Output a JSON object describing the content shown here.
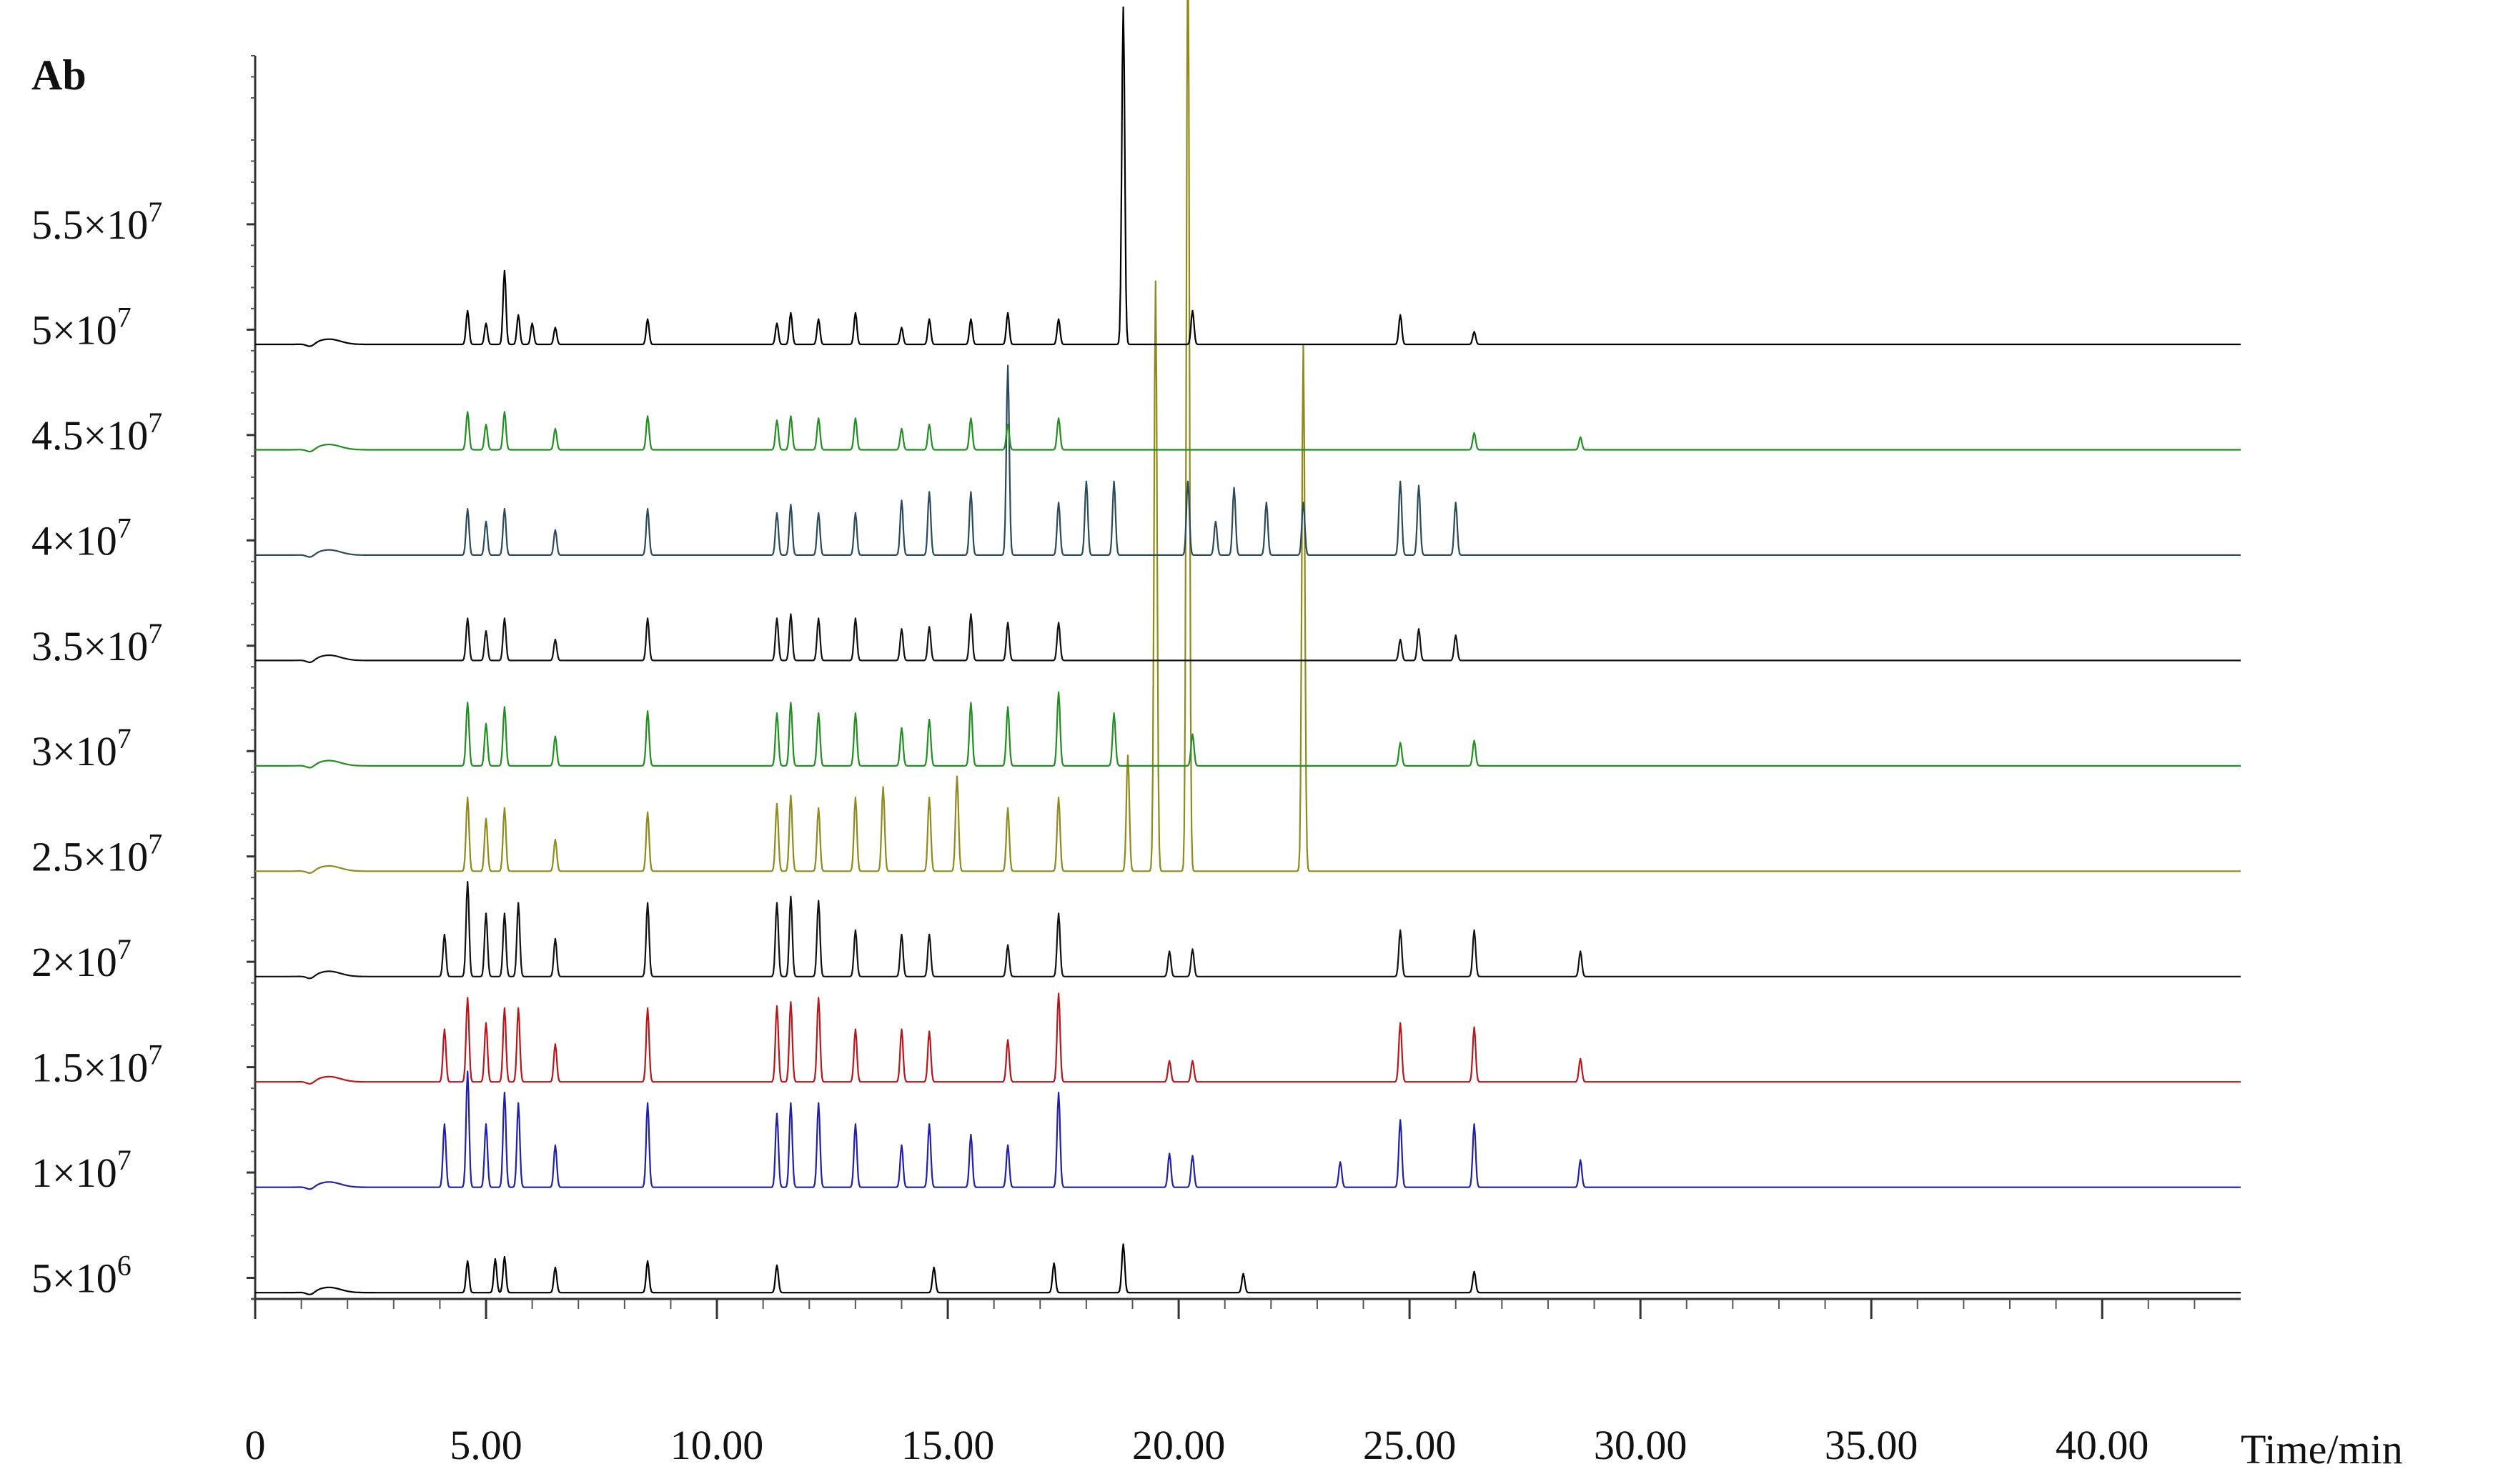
{
  "chart_data": {
    "type": "line",
    "title": "",
    "ylabel": "Ab",
    "xlabel": "Time/min",
    "x_ticks": [
      "0",
      "5.00",
      "10.00",
      "15.00",
      "20.00",
      "25.00",
      "30.00",
      "35.00",
      "40.00"
    ],
    "x_tick_values": [
      0,
      5,
      10,
      15,
      20,
      25,
      30,
      35,
      40
    ],
    "y_ticks": [
      {
        "value": 5000000,
        "mantissa": "5",
        "exponent": "6"
      },
      {
        "value": 10000000,
        "mantissa": "1",
        "exponent": "7"
      },
      {
        "value": 15000000,
        "mantissa": "1.5",
        "exponent": "7"
      },
      {
        "value": 20000000,
        "mantissa": "2",
        "exponent": "7"
      },
      {
        "value": 25000000,
        "mantissa": "2.5",
        "exponent": "7"
      },
      {
        "value": 30000000,
        "mantissa": "3",
        "exponent": "7"
      },
      {
        "value": 35000000,
        "mantissa": "3.5",
        "exponent": "7"
      },
      {
        "value": 40000000,
        "mantissa": "4",
        "exponent": "7"
      },
      {
        "value": 45000000,
        "mantissa": "4.5",
        "exponent": "7"
      },
      {
        "value": 50000000,
        "mantissa": "5",
        "exponent": "7"
      },
      {
        "value": 55000000,
        "mantissa": "5.5",
        "exponent": "7"
      }
    ],
    "times_symbol": "×",
    "xlim": [
      0,
      43
    ],
    "ylim": [
      4000000,
      63000000
    ],
    "grid": false,
    "legend": "none",
    "series": [
      {
        "color": "#000000",
        "baseline": 4300000,
        "peaks": [
          [
            4.6,
            1.5
          ],
          [
            5.2,
            1.6
          ],
          [
            5.4,
            1.7
          ],
          [
            6.5,
            1.2
          ],
          [
            8.5,
            1.5
          ],
          [
            11.3,
            1.3
          ],
          [
            14.7,
            1.2
          ],
          [
            17.3,
            1.4
          ],
          [
            18.8,
            2.3
          ],
          [
            21.4,
            0.9
          ],
          [
            26.4,
            1.0
          ]
        ]
      },
      {
        "color": "#1f1faa",
        "baseline": 9300000,
        "peaks": [
          [
            4.1,
            3.0
          ],
          [
            4.6,
            5.5
          ],
          [
            5.0,
            3.0
          ],
          [
            5.4,
            4.5
          ],
          [
            5.7,
            4.0
          ],
          [
            6.5,
            2.0
          ],
          [
            8.5,
            4.0
          ],
          [
            11.3,
            3.5
          ],
          [
            11.6,
            4.0
          ],
          [
            12.2,
            4.0
          ],
          [
            13.0,
            3.0
          ],
          [
            14.0,
            2.0
          ],
          [
            14.6,
            3.0
          ],
          [
            15.5,
            2.5
          ],
          [
            16.3,
            2.0
          ],
          [
            17.4,
            4.5
          ],
          [
            19.8,
            1.6
          ],
          [
            20.3,
            1.5
          ],
          [
            23.5,
            1.2
          ],
          [
            24.8,
            3.2
          ],
          [
            26.4,
            3.0
          ],
          [
            28.7,
            1.3
          ]
        ]
      },
      {
        "color": "#b8161b",
        "baseline": 14300000,
        "peaks": [
          [
            4.1,
            2.5
          ],
          [
            4.6,
            4.0
          ],
          [
            5.0,
            2.8
          ],
          [
            5.4,
            3.5
          ],
          [
            5.7,
            3.5
          ],
          [
            6.5,
            1.8
          ],
          [
            8.5,
            3.5
          ],
          [
            11.3,
            3.6
          ],
          [
            11.6,
            3.8
          ],
          [
            12.2,
            4.0
          ],
          [
            13.0,
            2.5
          ],
          [
            14.0,
            2.5
          ],
          [
            14.6,
            2.4
          ],
          [
            16.3,
            2.0
          ],
          [
            17.4,
            4.2
          ],
          [
            19.8,
            1.0
          ],
          [
            20.3,
            1.0
          ],
          [
            24.8,
            2.8
          ],
          [
            26.4,
            2.6
          ],
          [
            28.7,
            1.1
          ]
        ]
      },
      {
        "color": "#111111",
        "baseline": 19300000,
        "peaks": [
          [
            4.1,
            2.0
          ],
          [
            4.6,
            4.5
          ],
          [
            5.0,
            3.0
          ],
          [
            5.4,
            3.0
          ],
          [
            5.7,
            3.5
          ],
          [
            6.5,
            1.8
          ],
          [
            8.5,
            3.5
          ],
          [
            11.3,
            3.5
          ],
          [
            11.6,
            3.8
          ],
          [
            12.2,
            3.6
          ],
          [
            13.0,
            2.2
          ],
          [
            14.0,
            2.0
          ],
          [
            14.6,
            2.0
          ],
          [
            16.3,
            1.5
          ],
          [
            17.4,
            3.0
          ],
          [
            19.8,
            1.2
          ],
          [
            20.3,
            1.3
          ],
          [
            24.8,
            2.2
          ],
          [
            26.4,
            2.2
          ],
          [
            28.7,
            1.2
          ]
        ]
      },
      {
        "color": "#8f8a1a",
        "baseline": 24300000,
        "peaks": [
          [
            4.6,
            3.5
          ],
          [
            5.0,
            2.5
          ],
          [
            5.4,
            3.0
          ],
          [
            6.5,
            1.5
          ],
          [
            8.5,
            2.8
          ],
          [
            11.3,
            3.2
          ],
          [
            11.6,
            3.6
          ],
          [
            12.2,
            3.0
          ],
          [
            13.0,
            3.5
          ],
          [
            13.6,
            4.0
          ],
          [
            14.6,
            3.5
          ],
          [
            15.2,
            4.5
          ],
          [
            16.3,
            3.0
          ],
          [
            17.4,
            3.5
          ],
          [
            18.9,
            5.5
          ],
          [
            19.5,
            28.0
          ],
          [
            20.2,
            45.0
          ],
          [
            22.7,
            25.0
          ]
        ]
      },
      {
        "color": "#1f8f1f",
        "baseline": 29300000,
        "peaks": [
          [
            4.6,
            3.0
          ],
          [
            5.0,
            2.0
          ],
          [
            5.4,
            2.8
          ],
          [
            6.5,
            1.4
          ],
          [
            8.5,
            2.6
          ],
          [
            11.3,
            2.5
          ],
          [
            11.6,
            3.0
          ],
          [
            12.2,
            2.5
          ],
          [
            13.0,
            2.5
          ],
          [
            14.0,
            1.8
          ],
          [
            14.6,
            2.2
          ],
          [
            15.5,
            3.0
          ],
          [
            16.3,
            2.8
          ],
          [
            17.4,
            3.5
          ],
          [
            18.6,
            2.5
          ],
          [
            20.3,
            1.5
          ],
          [
            24.8,
            1.1
          ],
          [
            26.4,
            1.2
          ]
        ]
      },
      {
        "color": "#111111",
        "baseline": 34300000,
        "peaks": [
          [
            4.6,
            2.0
          ],
          [
            5.0,
            1.4
          ],
          [
            5.4,
            2.0
          ],
          [
            6.5,
            1.0
          ],
          [
            8.5,
            2.0
          ],
          [
            11.3,
            2.0
          ],
          [
            11.6,
            2.2
          ],
          [
            12.2,
            2.0
          ],
          [
            13.0,
            2.0
          ],
          [
            14.0,
            1.5
          ],
          [
            14.6,
            1.6
          ],
          [
            15.5,
            2.2
          ],
          [
            16.3,
            1.8
          ],
          [
            17.4,
            1.8
          ],
          [
            24.8,
            1.0
          ],
          [
            25.2,
            1.5
          ],
          [
            26.0,
            1.2
          ]
        ]
      },
      {
        "color": "#2a4a5a",
        "baseline": 39300000,
        "peaks": [
          [
            4.6,
            2.2
          ],
          [
            5.0,
            1.6
          ],
          [
            5.4,
            2.2
          ],
          [
            6.5,
            1.2
          ],
          [
            8.5,
            2.2
          ],
          [
            11.3,
            2.0
          ],
          [
            11.6,
            2.4
          ],
          [
            12.2,
            2.0
          ],
          [
            13.0,
            2.0
          ],
          [
            14.0,
            2.6
          ],
          [
            14.6,
            3.0
          ],
          [
            15.5,
            3.0
          ],
          [
            16.3,
            9.0
          ],
          [
            17.4,
            2.5
          ],
          [
            18.0,
            3.5
          ],
          [
            18.6,
            3.5
          ],
          [
            20.2,
            3.5
          ],
          [
            20.8,
            1.6
          ],
          [
            21.2,
            3.2
          ],
          [
            21.9,
            2.5
          ],
          [
            22.7,
            2.5
          ],
          [
            24.8,
            3.5
          ],
          [
            25.2,
            3.3
          ],
          [
            26.0,
            2.5
          ]
        ]
      },
      {
        "color": "#1f8f1f",
        "baseline": 44300000,
        "peaks": [
          [
            4.6,
            1.8
          ],
          [
            5.0,
            1.2
          ],
          [
            5.4,
            1.8
          ],
          [
            6.5,
            1.0
          ],
          [
            8.5,
            1.6
          ],
          [
            11.3,
            1.4
          ],
          [
            11.6,
            1.6
          ],
          [
            12.2,
            1.5
          ],
          [
            13.0,
            1.5
          ],
          [
            14.0,
            1.0
          ],
          [
            14.6,
            1.2
          ],
          [
            15.5,
            1.5
          ],
          [
            16.3,
            1.2
          ],
          [
            17.4,
            1.5
          ],
          [
            26.4,
            0.8
          ],
          [
            28.7,
            0.6
          ]
        ]
      },
      {
        "color": "#000000",
        "baseline": 49300000,
        "peaks": [
          [
            4.6,
            1.6
          ],
          [
            5.0,
            1.0
          ],
          [
            5.4,
            3.5
          ],
          [
            5.7,
            1.4
          ],
          [
            6.0,
            1.0
          ],
          [
            6.5,
            0.8
          ],
          [
            8.5,
            1.2
          ],
          [
            11.3,
            1.0
          ],
          [
            11.6,
            1.5
          ],
          [
            12.2,
            1.2
          ],
          [
            13.0,
            1.5
          ],
          [
            14.0,
            0.8
          ],
          [
            14.6,
            1.2
          ],
          [
            15.5,
            1.2
          ],
          [
            16.3,
            1.5
          ],
          [
            17.4,
            1.2
          ],
          [
            18.8,
            16.0
          ],
          [
            20.3,
            1.6
          ],
          [
            24.8,
            1.4
          ],
          [
            26.4,
            0.6
          ]
        ]
      }
    ]
  }
}
